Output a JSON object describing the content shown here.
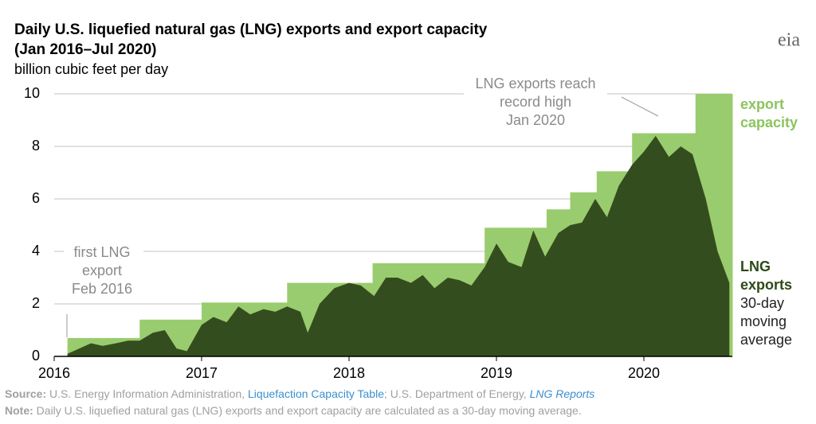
{
  "chart_data": {
    "type": "area",
    "title": [
      "Daily U.S. liquefied natural gas (LNG) exports and export capacity",
      "(Jan 2016–Jul 2020)"
    ],
    "subtitle": "billion cubic feet per day",
    "logo": "eia",
    "xlim": [
      2016,
      2020.6
    ],
    "xticks": [
      2016,
      2017,
      2018,
      2019,
      2020
    ],
    "ylim": [
      0,
      10
    ],
    "yticks": [
      0,
      2,
      4,
      6,
      8,
      10
    ],
    "grid": true,
    "series": [
      {
        "name": "export capacity",
        "color": "#99cc6e",
        "step": "post",
        "bins": [
          2016.09,
          2016.58,
          2017.0,
          2017.58,
          2018.16,
          2018.92,
          2019.34,
          2019.5,
          2019.68,
          2019.92,
          2020.35,
          2020.6
        ],
        "values": [
          0.7,
          1.4,
          2.05,
          2.8,
          3.55,
          4.9,
          5.6,
          6.25,
          7.05,
          8.5,
          10
        ]
      },
      {
        "name": "LNG exports",
        "color": "#344d1e",
        "x": [
          2016.09,
          2016.17,
          2016.25,
          2016.33,
          2016.42,
          2016.5,
          2016.58,
          2016.67,
          2016.75,
          2016.83,
          2016.9,
          2017.0,
          2017.08,
          2017.17,
          2017.25,
          2017.33,
          2017.42,
          2017.5,
          2017.58,
          2017.67,
          2017.72,
          2017.8,
          2017.9,
          2018.0,
          2018.08,
          2018.17,
          2018.25,
          2018.33,
          2018.42,
          2018.5,
          2018.58,
          2018.67,
          2018.75,
          2018.83,
          2018.92,
          2019.0,
          2019.08,
          2019.17,
          2019.25,
          2019.33,
          2019.42,
          2019.5,
          2019.58,
          2019.67,
          2019.75,
          2019.83,
          2019.92,
          2020.0,
          2020.08,
          2020.17,
          2020.25,
          2020.33,
          2020.42,
          2020.5,
          2020.58
        ],
        "values": [
          0.1,
          0.3,
          0.5,
          0.4,
          0.5,
          0.6,
          0.6,
          0.9,
          1.0,
          0.3,
          0.2,
          1.2,
          1.5,
          1.3,
          1.9,
          1.6,
          1.8,
          1.7,
          1.9,
          1.7,
          0.9,
          2.0,
          2.6,
          2.8,
          2.7,
          2.3,
          3.0,
          3.0,
          2.8,
          3.1,
          2.6,
          3.0,
          2.9,
          2.7,
          3.4,
          4.3,
          3.6,
          3.4,
          4.8,
          3.8,
          4.7,
          5.0,
          5.1,
          6.0,
          5.3,
          6.5,
          7.3,
          7.8,
          8.4,
          7.6,
          8.0,
          7.7,
          6.0,
          4.0,
          2.8
        ]
      }
    ],
    "series_note": [
      "30-day",
      "moving",
      "average"
    ],
    "annotations": [
      [
        "LNG exports reach",
        "record high",
        "Jan 2020"
      ],
      [
        "first LNG",
        "export",
        "Feb 2016"
      ]
    ],
    "source": {
      "label": "Source:",
      "text_1": "U.S. Energy Information Administration,",
      "link_1": "Liquefaction Capacity Table",
      "text_2": "; U.S. Department of Energy,",
      "link_2": "LNG Reports"
    },
    "note": {
      "label": "Note:",
      "text": "Daily U.S. liquefied natural gas (LNG) exports and export capacity are calculated as a 30-day moving average."
    }
  }
}
